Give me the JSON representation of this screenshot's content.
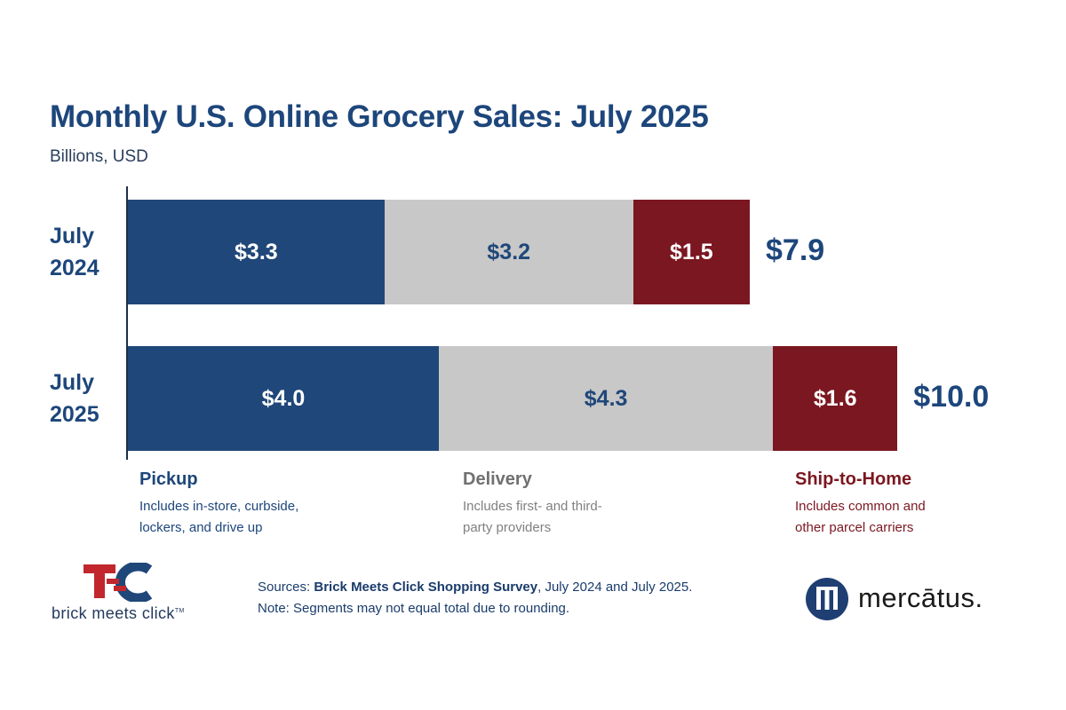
{
  "chart_data": {
    "type": "bar",
    "orientation": "horizontal",
    "stacked": true,
    "title": "Monthly U.S. Online Grocery Sales: July 2025",
    "subtitle": "Billions, USD",
    "categories": [
      {
        "line1": "July",
        "line2": "2024",
        "total_label": "$7.9",
        "total": 7.9
      },
      {
        "line1": "July",
        "line2": "2025",
        "total_label": "$10.0",
        "total": 10.0
      }
    ],
    "series": [
      {
        "name": "Pickup",
        "description": [
          "Includes in-store, curbside,",
          "lockers, and drive up"
        ],
        "color": "#1f4779",
        "text_color": "#ffffff",
        "values": [
          3.3,
          4.0
        ],
        "labels": [
          "$3.3",
          "$4.0"
        ]
      },
      {
        "name": "Delivery",
        "description": [
          "Includes first- and third-",
          "party providers"
        ],
        "color": "#c8c8c8",
        "text_color": "#1f4779",
        "values": [
          3.2,
          4.3
        ],
        "labels": [
          "$3.2",
          "$4.3"
        ]
      },
      {
        "name": "Ship-to-Home",
        "description": [
          "Includes common and",
          "other parcel carriers"
        ],
        "color": "#7b1720",
        "text_color": "#ffffff",
        "values": [
          1.5,
          1.6
        ],
        "labels": [
          "$1.5",
          "$1.6"
        ]
      }
    ],
    "legend_name_colors": [
      "#1d467b",
      "#707070",
      "#7b1720"
    ],
    "legend_desc_colors": [
      "#1d467b",
      "#808080",
      "#7b1720"
    ],
    "grid": false,
    "legend_position": "bottom"
  },
  "footer": {
    "sources_prefix": "Sources: ",
    "sources_bold": "Brick Meets Click Shopping Survey",
    "sources_suffix": ", July 2024 and July 2025.",
    "note": "Note: Segments may not equal total due to rounding."
  },
  "logos": {
    "brick_meets_click": "brick meets click",
    "brick_meets_click_tm": "TM",
    "mercatus": "mercātus."
  }
}
